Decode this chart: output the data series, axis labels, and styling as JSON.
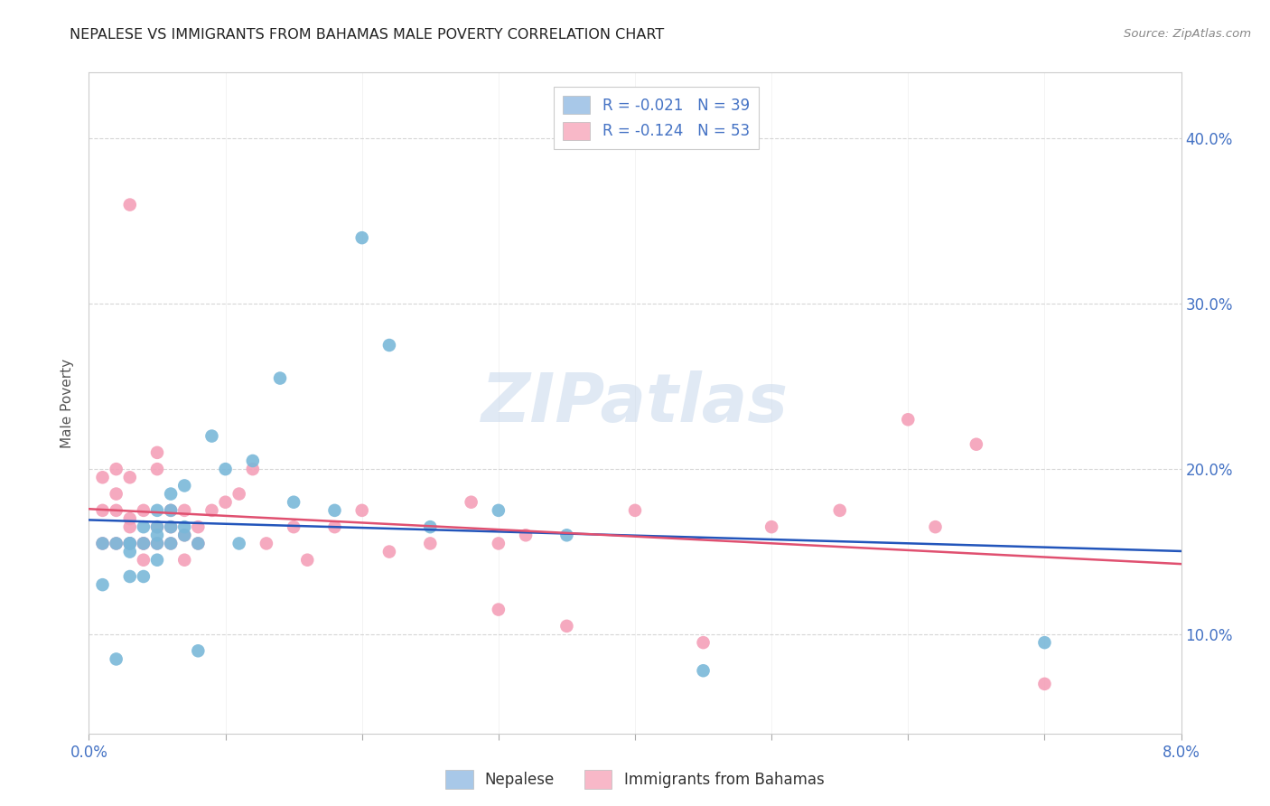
{
  "title": "NEPALESE VS IMMIGRANTS FROM BAHAMAS MALE POVERTY CORRELATION CHART",
  "source": "Source: ZipAtlas.com",
  "ylabel": "Male Poverty",
  "ytick_values": [
    0.1,
    0.2,
    0.3,
    0.4
  ],
  "xlim": [
    0.0,
    0.08
  ],
  "ylim": [
    0.04,
    0.44
  ],
  "nepalese_color": "#7ab8d9",
  "bahamas_color": "#f4a0b8",
  "nepalese_line_color": "#2255bb",
  "bahamas_line_color": "#e05070",
  "watermark": "ZIPatlas",
  "legend_r1": "R = -0.021   N = 39",
  "legend_r2": "R = -0.124   N = 53",
  "legend_label1": "Nepalese",
  "legend_label2": "Immigrants from Bahamas",
  "tick_color": "#4472c4",
  "title_fontsize": 12,
  "nepalese_x": [
    0.001,
    0.001,
    0.002,
    0.002,
    0.003,
    0.003,
    0.003,
    0.003,
    0.004,
    0.004,
    0.004,
    0.005,
    0.005,
    0.005,
    0.005,
    0.005,
    0.006,
    0.006,
    0.006,
    0.006,
    0.007,
    0.007,
    0.007,
    0.008,
    0.009,
    0.01,
    0.011,
    0.012,
    0.014,
    0.015,
    0.018,
    0.02,
    0.022,
    0.025,
    0.03,
    0.035,
    0.045,
    0.07,
    0.008
  ],
  "nepalese_y": [
    0.155,
    0.13,
    0.155,
    0.085,
    0.155,
    0.135,
    0.15,
    0.155,
    0.165,
    0.155,
    0.135,
    0.145,
    0.165,
    0.175,
    0.155,
    0.16,
    0.175,
    0.185,
    0.165,
    0.155,
    0.165,
    0.19,
    0.16,
    0.155,
    0.22,
    0.2,
    0.155,
    0.205,
    0.255,
    0.18,
    0.175,
    0.34,
    0.275,
    0.165,
    0.175,
    0.16,
    0.078,
    0.095,
    0.09
  ],
  "bahamas_x": [
    0.001,
    0.001,
    0.001,
    0.002,
    0.002,
    0.002,
    0.002,
    0.003,
    0.003,
    0.003,
    0.003,
    0.003,
    0.004,
    0.004,
    0.004,
    0.004,
    0.005,
    0.005,
    0.005,
    0.005,
    0.006,
    0.006,
    0.006,
    0.007,
    0.007,
    0.007,
    0.008,
    0.008,
    0.009,
    0.01,
    0.011,
    0.012,
    0.013,
    0.015,
    0.016,
    0.018,
    0.02,
    0.022,
    0.025,
    0.028,
    0.03,
    0.032,
    0.035,
    0.04,
    0.045,
    0.05,
    0.055,
    0.06,
    0.062,
    0.065,
    0.003,
    0.03,
    0.07
  ],
  "bahamas_y": [
    0.175,
    0.155,
    0.195,
    0.2,
    0.155,
    0.175,
    0.185,
    0.195,
    0.155,
    0.165,
    0.155,
    0.17,
    0.175,
    0.155,
    0.155,
    0.145,
    0.21,
    0.2,
    0.155,
    0.165,
    0.155,
    0.175,
    0.165,
    0.16,
    0.175,
    0.145,
    0.155,
    0.165,
    0.175,
    0.18,
    0.185,
    0.2,
    0.155,
    0.165,
    0.145,
    0.165,
    0.175,
    0.15,
    0.155,
    0.18,
    0.155,
    0.16,
    0.105,
    0.175,
    0.095,
    0.165,
    0.175,
    0.23,
    0.165,
    0.215,
    0.36,
    0.115,
    0.07
  ]
}
